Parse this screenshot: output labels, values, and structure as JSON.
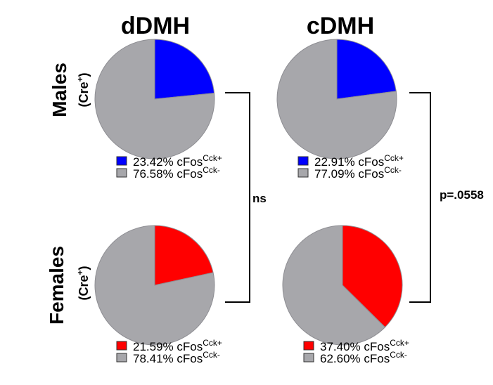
{
  "chart_data": {
    "type": "pie",
    "column_titles": [
      "dDMH",
      "cDMH"
    ],
    "row_titles": [
      {
        "main": "Males",
        "sub_base": "(Cre",
        "sub_sup": "+",
        "sub_end": ")"
      },
      {
        "main": "Females",
        "sub_base": "(Cre",
        "sub_sup": "+",
        "sub_end": ")"
      }
    ],
    "panels": [
      {
        "row": "Males",
        "column": "dDMH",
        "slices": [
          {
            "value": 23.42,
            "color": "#0000ff",
            "pct_label": "23.42%",
            "name": "cFos",
            "sup": "Cck+"
          },
          {
            "value": 76.58,
            "color": "#a7a7ab",
            "pct_label": "76.58%",
            "name": "cFos",
            "sup": "Cck-"
          }
        ]
      },
      {
        "row": "Males",
        "column": "cDMH",
        "slices": [
          {
            "value": 22.91,
            "color": "#0000ff",
            "pct_label": "22.91%",
            "name": "cFos",
            "sup": "Cck+"
          },
          {
            "value": 77.09,
            "color": "#a7a7ab",
            "pct_label": "77.09%",
            "name": "cFos",
            "sup": "Cck-"
          }
        ]
      },
      {
        "row": "Females",
        "column": "dDMH",
        "slices": [
          {
            "value": 21.59,
            "color": "#ff0000",
            "pct_label": "21.59%",
            "name": "cFos",
            "sup": "Cck+"
          },
          {
            "value": 78.41,
            "color": "#a7a7ab",
            "pct_label": "78.41%",
            "name": "cFos",
            "sup": "Cck-"
          }
        ]
      },
      {
        "row": "Females",
        "column": "cDMH",
        "slices": [
          {
            "value": 37.4,
            "color": "#ff0000",
            "pct_label": "37.40%",
            "name": "cFos",
            "sup": "Cck+"
          },
          {
            "value": 62.6,
            "color": "#a7a7ab",
            "pct_label": "62.60%",
            "name": "cFos",
            "sup": "Cck-"
          }
        ]
      }
    ],
    "comparisons": [
      {
        "column": "dDMH",
        "label": "ns"
      },
      {
        "column": "cDMH",
        "label": "p=.0558"
      }
    ]
  }
}
